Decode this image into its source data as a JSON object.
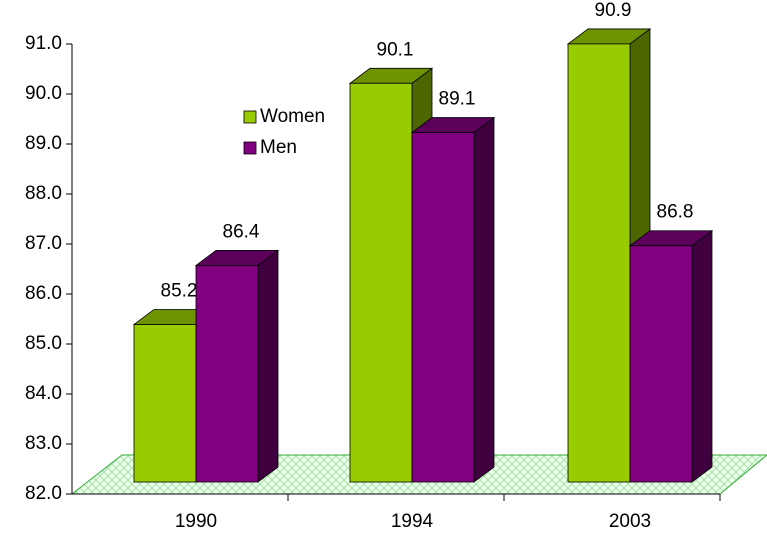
{
  "chart_data": {
    "type": "bar3d",
    "categories": [
      "1990",
      "1994",
      "2003"
    ],
    "series": [
      {
        "name": "Women",
        "color": "#99cc00",
        "values": [
          85.2,
          90.1,
          90.9
        ]
      },
      {
        "name": "Men",
        "color": "#800080",
        "values": [
          86.4,
          89.1,
          86.8
        ]
      }
    ],
    "ylim": [
      82,
      91
    ],
    "yticks": [
      {
        "value": 82,
        "label": "82.0"
      },
      {
        "value": 83,
        "label": "83.0"
      },
      {
        "value": 84,
        "label": "84.0"
      },
      {
        "value": 85,
        "label": "85.0"
      },
      {
        "value": 86,
        "label": "86.0"
      },
      {
        "value": 87,
        "label": "87.0"
      },
      {
        "value": 88,
        "label": "88.0"
      },
      {
        "value": 89,
        "label": "89.0"
      },
      {
        "value": 90,
        "label": "90.0"
      },
      {
        "value": 91,
        "label": "91.0"
      }
    ],
    "legend": "upper-left"
  }
}
